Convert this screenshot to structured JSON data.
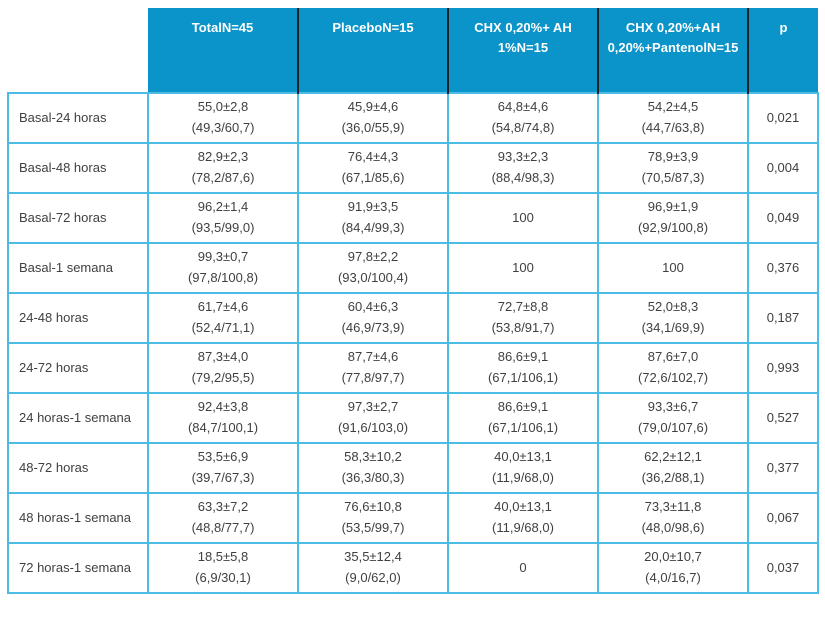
{
  "colors": {
    "header_bg": "#0a94c9",
    "header_text": "#ffffff",
    "header_separator": "#1f2226",
    "grid_border": "#4cbce6",
    "body_text": "#404040"
  },
  "chart_data": {
    "type": "table",
    "title": "",
    "corner_label": "",
    "column_headers": [
      {
        "id": "total",
        "lines": [
          "Total",
          "N=45"
        ]
      },
      {
        "id": "placebo",
        "lines": [
          "Placebo",
          "N=15"
        ]
      },
      {
        "id": "chx-ah1",
        "lines": [
          "CHX 0,20%",
          "+ AH 1%",
          "N=15"
        ]
      },
      {
        "id": "chx-ah020-pantenol",
        "lines": [
          "CHX 0,20%",
          "+AH 0,20%",
          "+Pantenol",
          "N=15"
        ]
      },
      {
        "id": "p",
        "lines": [
          "p"
        ]
      }
    ],
    "rows": [
      {
        "label": "Basal-24 horas",
        "cells": [
          [
            "55,0±2,8",
            "(49,3/60,7)"
          ],
          [
            "45,9±4,6",
            "(36,0/55,9)"
          ],
          [
            "64,8±4,6",
            "(54,8/74,8)"
          ],
          [
            "54,2±4,5",
            "(44,7/63,8)"
          ]
        ],
        "p": "0,021"
      },
      {
        "label": "Basal-48 horas",
        "cells": [
          [
            "82,9±2,3",
            "(78,2/87,6)"
          ],
          [
            "76,4±4,3",
            "(67,1/85,6)"
          ],
          [
            "93,3±2,3",
            "(88,4/98,3)"
          ],
          [
            "78,9±3,9",
            "(70,5/87,3)"
          ]
        ],
        "p": "0,004"
      },
      {
        "label": "Basal-72 horas",
        "cells": [
          [
            "96,2±1,4",
            "(93,5/99,0)"
          ],
          [
            "91,9±3,5",
            "(84,4/99,3)"
          ],
          [
            "100"
          ],
          [
            "96,9±1,9",
            "(92,9/100,8)"
          ]
        ],
        "p": "0,049"
      },
      {
        "label": "Basal-1 semana",
        "cells": [
          [
            "99,3±0,7",
            "(97,8/100,8)"
          ],
          [
            "97,8±2,2",
            "(93,0/100,4)"
          ],
          [
            "100"
          ],
          [
            "100"
          ]
        ],
        "p": "0,376"
      },
      {
        "label": "24-48 horas",
        "cells": [
          [
            "61,7±4,6",
            "(52,4/71,1)"
          ],
          [
            "60,4±6,3",
            "(46,9/73,9)"
          ],
          [
            "72,7±8,8",
            "(53,8/91,7)"
          ],
          [
            "52,0±8,3",
            "(34,1/69,9)"
          ]
        ],
        "p": "0,187"
      },
      {
        "label": "24-72 horas",
        "cells": [
          [
            "87,3±4,0",
            "(79,2/95,5)"
          ],
          [
            "87,7±4,6",
            "(77,8/97,7)"
          ],
          [
            "86,6±9,1",
            "(67,1/106,1)"
          ],
          [
            "87,6±7,0",
            "(72,6/102,7)"
          ]
        ],
        "p": "0,993"
      },
      {
        "label": "24 horas-1 semana",
        "cells": [
          [
            "92,4±3,8",
            "(84,7/100,1)"
          ],
          [
            "97,3±2,7",
            "(91,6/103,0)"
          ],
          [
            "86,6±9,1",
            "(67,1/106,1)"
          ],
          [
            "93,3±6,7",
            "(79,0/107,6)"
          ]
        ],
        "p": "0,527"
      },
      {
        "label": "48-72 horas",
        "cells": [
          [
            "53,5±6,9",
            "(39,7/67,3)"
          ],
          [
            "58,3±10,2",
            "(36,3/80,3)"
          ],
          [
            "40,0±13,1",
            "(11,9/68,0)"
          ],
          [
            "62,2±12,1",
            "(36,2/88,1)"
          ]
        ],
        "p": "0,377"
      },
      {
        "label": "48 horas-1 semana",
        "cells": [
          [
            "63,3±7,2",
            "(48,8/77,7)"
          ],
          [
            "76,6±10,8",
            "(53,5/99,7)"
          ],
          [
            "40,0±13,1",
            "(11,9/68,0)"
          ],
          [
            "73,3±11,8",
            "(48,0/98,6)"
          ]
        ],
        "p": "0,067"
      },
      {
        "label": "72 horas-1 semana",
        "cells": [
          [
            "18,5±5,8",
            "(6,9/30,1)"
          ],
          [
            "35,5±12,4",
            "(9,0/62,0)"
          ],
          [
            "0"
          ],
          [
            "20,0±10,7",
            "(4,0/16,7)"
          ]
        ],
        "p": "0,037"
      }
    ]
  }
}
